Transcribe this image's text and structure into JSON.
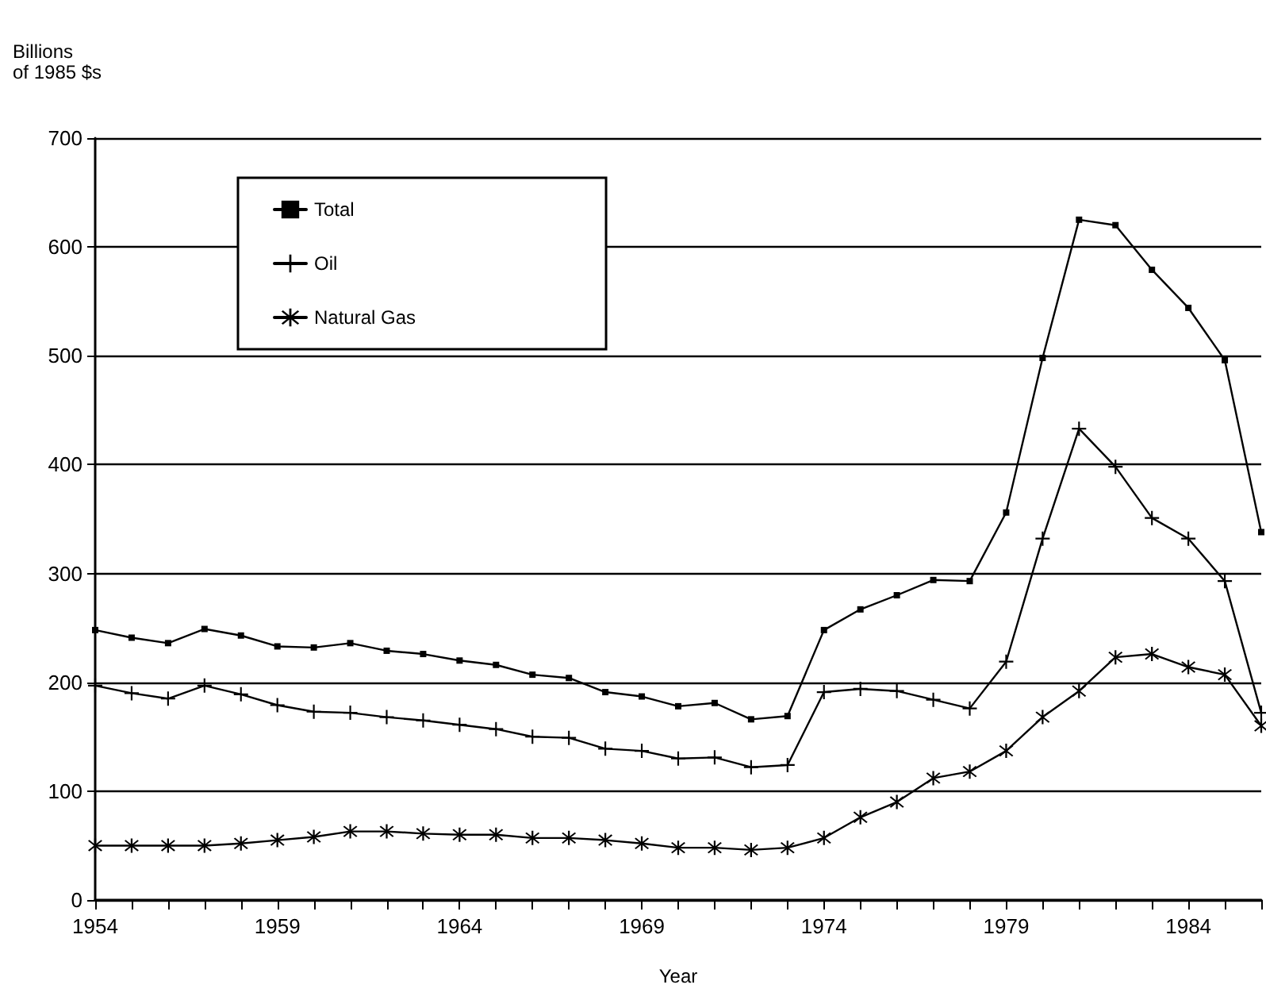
{
  "chart_data": {
    "type": "line",
    "xlabel": "Year",
    "ylabel": "Billions\nof 1985 $s",
    "x": [
      1954,
      1955,
      1956,
      1957,
      1958,
      1959,
      1960,
      1961,
      1962,
      1963,
      1964,
      1965,
      1966,
      1967,
      1968,
      1969,
      1970,
      1971,
      1972,
      1973,
      1974,
      1975,
      1976,
      1977,
      1978,
      1979,
      1980,
      1981,
      1982,
      1983,
      1984,
      1985,
      1986
    ],
    "series": [
      {
        "name": "Total",
        "color": "#000000",
        "marker": "square",
        "values": [
          248,
          241,
          236,
          249,
          243,
          233,
          232,
          236,
          229,
          226,
          220,
          216,
          207,
          204,
          191,
          187,
          178,
          181,
          166,
          169,
          248,
          267,
          280,
          294,
          293,
          356,
          498,
          625,
          620,
          579,
          544,
          496,
          338
        ]
      },
      {
        "name": "Oil",
        "color": "#000000",
        "marker": "cross",
        "values": [
          197,
          190,
          185,
          197,
          189,
          179,
          173,
          172,
          168,
          165,
          161,
          157,
          150,
          149,
          139,
          137,
          130,
          131,
          122,
          124,
          191,
          194,
          192,
          184,
          176,
          219,
          332,
          433,
          398,
          351,
          332,
          293,
          172
        ]
      },
      {
        "name": "Natural Gas",
        "color": "#000000",
        "marker": "star",
        "values": [
          50,
          50,
          50,
          50,
          52,
          55,
          58,
          63,
          63,
          61,
          60,
          60,
          57,
          57,
          55,
          52,
          48,
          48,
          46,
          48,
          57,
          76,
          90,
          112,
          118,
          137,
          168,
          192,
          223,
          226,
          214,
          207,
          160
        ]
      }
    ],
    "xlim": [
      1954,
      1986
    ],
    "xticks": [
      1954,
      {
        "value": 1955,
        "label": null
      },
      {
        "value": 1956,
        "label": null
      },
      {
        "value": 1957,
        "label": null
      },
      {
        "value": 1958,
        "label": null
      },
      1959,
      {
        "value": 1960,
        "label": null
      },
      {
        "value": 1961,
        "label": null
      },
      {
        "value": 1962,
        "label": null
      },
      {
        "value": 1963,
        "label": null
      },
      1964,
      {
        "value": 1965,
        "label": null
      },
      {
        "value": 1966,
        "label": null
      },
      {
        "value": 1967,
        "label": null
      },
      {
        "value": 1968,
        "label": null
      },
      1969,
      {
        "value": 1970,
        "label": null
      },
      {
        "value": 1971,
        "label": null
      },
      {
        "value": 1972,
        "label": null
      },
      {
        "value": 1973,
        "label": null
      },
      1974,
      {
        "value": 1975,
        "label": null
      },
      {
        "value": 1976,
        "label": null
      },
      {
        "value": 1977,
        "label": null
      },
      {
        "value": 1978,
        "label": null
      },
      1979,
      {
        "value": 1980,
        "label": null
      },
      {
        "value": 1981,
        "label": null
      },
      {
        "value": 1982,
        "label": null
      },
      {
        "value": 1983,
        "label": null
      },
      1984,
      {
        "value": 1985,
        "label": null
      },
      {
        "value": 1986,
        "label": null
      }
    ],
    "ylim": [
      0,
      700
    ],
    "yticks": [
      0,
      100,
      200,
      300,
      400,
      500,
      600,
      700
    ],
    "grid": "y",
    "legend": "top left"
  }
}
